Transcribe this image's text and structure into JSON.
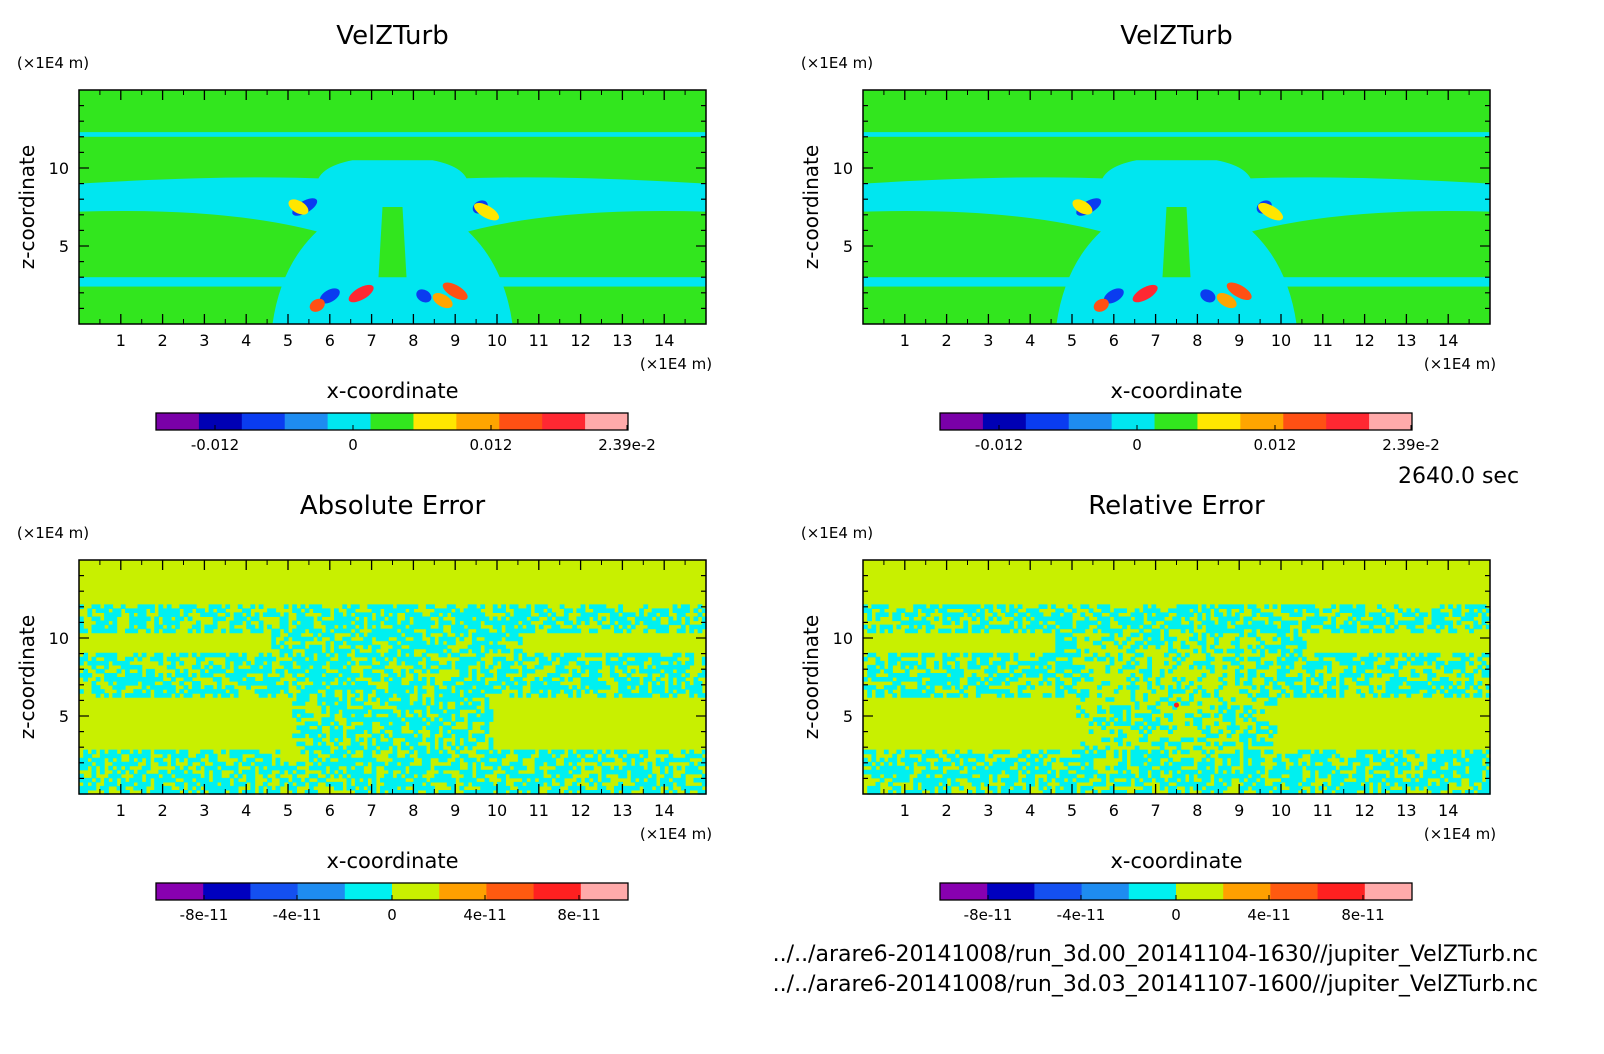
{
  "chart_data": [
    {
      "type": "heatmap",
      "title": "VelZTurb",
      "xlabel": "x-coordinate",
      "ylabel": "z-coordinate",
      "x_unit": "(×1E4 m)",
      "y_unit": "(×1E4 m)",
      "xlim": [
        0,
        15
      ],
      "ylim": [
        0,
        15
      ],
      "x_ticks": [
        "1",
        "2",
        "3",
        "4",
        "5",
        "6",
        "7",
        "8",
        "9",
        "10",
        "11",
        "12",
        "13",
        "14"
      ],
      "y_ticks": [
        "5",
        "10"
      ],
      "colorbar": {
        "colors": [
          "#7a00a8",
          "#0000b4",
          "#0a3cf0",
          "#1e8cf0",
          "#00e6f0",
          "#32e61e",
          "#ffe600",
          "#ffa500",
          "#ff5014",
          "#ff2832",
          "#ffaaaa"
        ],
        "tick_labels": [
          "-0.012",
          "0",
          "0.012",
          "2.39e-2"
        ],
        "max": "2.39e-2"
      }
    },
    {
      "type": "heatmap",
      "title": "VelZTurb",
      "xlabel": "x-coordinate",
      "ylabel": "z-coordinate",
      "x_unit": "(×1E4 m)",
      "y_unit": "(×1E4 m)",
      "xlim": [
        0,
        15
      ],
      "ylim": [
        0,
        15
      ],
      "x_ticks": [
        "1",
        "2",
        "3",
        "4",
        "5",
        "6",
        "7",
        "8",
        "9",
        "10",
        "11",
        "12",
        "13",
        "14"
      ],
      "y_ticks": [
        "5",
        "10"
      ],
      "colorbar": {
        "colors": [
          "#7a00a8",
          "#0000b4",
          "#0a3cf0",
          "#1e8cf0",
          "#00e6f0",
          "#32e61e",
          "#ffe600",
          "#ffa500",
          "#ff5014",
          "#ff2832",
          "#ffaaaa"
        ],
        "tick_labels": [
          "-0.012",
          "0",
          "0.012",
          "2.39e-2"
        ],
        "max": "2.39e-2"
      }
    },
    {
      "type": "heatmap",
      "title": "Absolute Error",
      "xlabel": "x-coordinate",
      "ylabel": "z-coordinate",
      "x_unit": "(×1E4 m)",
      "y_unit": "(×1E4 m)",
      "xlim": [
        0,
        15
      ],
      "ylim": [
        0,
        15
      ],
      "x_ticks": [
        "1",
        "2",
        "3",
        "4",
        "5",
        "6",
        "7",
        "8",
        "9",
        "10",
        "11",
        "12",
        "13",
        "14"
      ],
      "y_ticks": [
        "5",
        "10"
      ],
      "colorbar": {
        "colors": [
          "#8800b0",
          "#0000c0",
          "#1450f0",
          "#1e8cf0",
          "#00f0f0",
          "#c8f000",
          "#ffa000",
          "#ff5a10",
          "#ff2020",
          "#ffaaaa"
        ],
        "tick_labels": [
          "-8e-11",
          "-4e-11",
          "0",
          "4e-11",
          "8e-11"
        ]
      }
    },
    {
      "type": "heatmap",
      "title": "Relative Error",
      "xlabel": "x-coordinate",
      "ylabel": "z-coordinate",
      "x_unit": "(×1E4 m)",
      "y_unit": "(×1E4 m)",
      "xlim": [
        0,
        15
      ],
      "ylim": [
        0,
        15
      ],
      "x_ticks": [
        "1",
        "2",
        "3",
        "4",
        "5",
        "6",
        "7",
        "8",
        "9",
        "10",
        "11",
        "12",
        "13",
        "14"
      ],
      "y_ticks": [
        "5",
        "10"
      ],
      "colorbar": {
        "colors": [
          "#8800b0",
          "#0000c0",
          "#1450f0",
          "#1e8cf0",
          "#00f0f0",
          "#c8f000",
          "#ffa000",
          "#ff5a10",
          "#ff2020",
          "#ffaaaa"
        ],
        "tick_labels": [
          "-8e-11",
          "-4e-11",
          "0",
          "4e-11",
          "8e-11"
        ]
      }
    }
  ],
  "time_label": "2640.0 sec",
  "footer": {
    "file1": "../../arare6-20141008/run_3d.00_20141104-1630//jupiter_VelZTurb.nc",
    "file2": "../../arare6-20141008/run_3d.03_20141107-1600//jupiter_VelZTurb.nc"
  }
}
